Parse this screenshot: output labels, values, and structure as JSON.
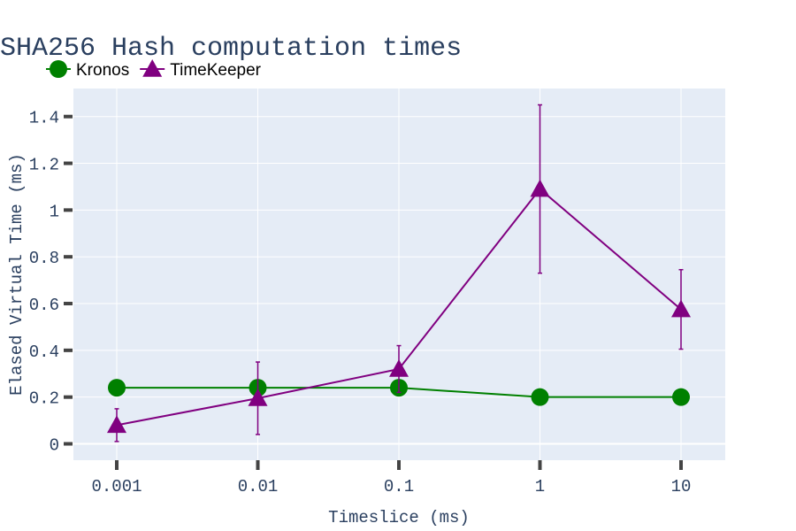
{
  "chart_data": {
    "type": "line",
    "title": "SHA256 Hash computation times",
    "xlabel": "Timeslice (ms)",
    "ylabel": "Elased Virtual Time (ms)",
    "x_scale": "log",
    "categories": [
      "0.001",
      "0.01",
      "0.1",
      "1",
      "10"
    ],
    "x": [
      0.001,
      0.01,
      0.1,
      1,
      10
    ],
    "ylim": [
      -0.07,
      1.52
    ],
    "yticks": [
      0,
      0.2,
      0.4,
      0.6,
      0.8,
      1,
      1.2,
      1.4
    ],
    "ytick_labels": [
      "0",
      "0.2",
      "0.4",
      "0.6",
      "0.8",
      "1",
      "1.2",
      "1.4"
    ],
    "grid": true,
    "legend_position": "top-left",
    "series": [
      {
        "name": "Kronos",
        "marker": "circle",
        "color": "#008000",
        "values": [
          0.24,
          0.24,
          0.24,
          0.2,
          0.2
        ],
        "error": [
          null,
          null,
          null,
          null,
          null
        ]
      },
      {
        "name": "TimeKeeper",
        "marker": "triangle-up",
        "color": "#800080",
        "values": [
          0.08,
          0.195,
          0.32,
          1.09,
          0.575
        ],
        "error": [
          0.07,
          0.155,
          0.1,
          0.36,
          0.17
        ]
      }
    ]
  },
  "colors": {
    "plot_background": "#e5ecf6",
    "grid": "#ffffff",
    "text": "#2a3f5f"
  }
}
